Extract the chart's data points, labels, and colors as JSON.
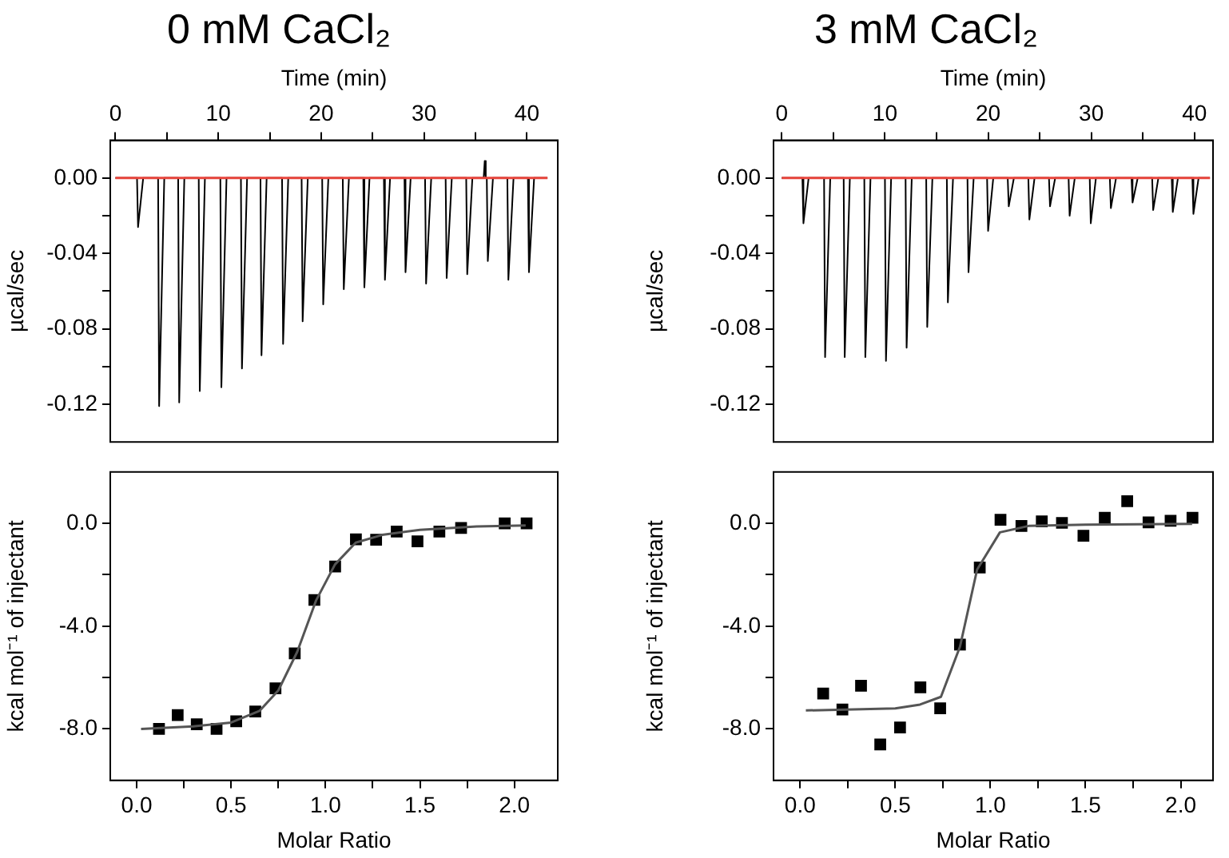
{
  "chart_data": [
    {
      "type": "line",
      "title": "0 mM CaCl₂",
      "xlabel": "Time (min)",
      "ylabel": "µcal/sec",
      "xlim": [
        -0.5,
        43
      ],
      "xticks": [
        0,
        {
          "value": 5,
          "label": null
        },
        10,
        {
          "value": 15,
          "label": null
        },
        20,
        {
          "value": 25,
          "label": null
        },
        30,
        {
          "value": 35,
          "label": null
        },
        40
      ],
      "ylim": [
        -0.14,
        0.02
      ],
      "yticks": [
        {
          "value": -0.12,
          "label": "-0.12"
        },
        {
          "value": -0.1,
          "label": null
        },
        {
          "value": -0.08,
          "label": "-0.08"
        },
        {
          "value": -0.06,
          "label": null
        },
        {
          "value": -0.04,
          "label": "-0.04"
        },
        {
          "value": -0.02,
          "label": null
        },
        {
          "value": 0,
          "label": "0.00"
        }
      ],
      "series": [
        {
          "color": "#000000",
          "marker": "none",
          "x": [
            0,
            2.1,
            2.2,
            2.7,
            4.15,
            4.25,
            4.75,
            6.1,
            6.2,
            6.7,
            8.1,
            8.2,
            8.7,
            10.2,
            10.3,
            10.8,
            12.2,
            12.3,
            12.8,
            14.1,
            14.2,
            14.7,
            16.2,
            16.3,
            16.8,
            18.1,
            18.2,
            18.7,
            20.1,
            20.2,
            20.7,
            22.1,
            22.2,
            22.7,
            24.1,
            24.2,
            24.7,
            26.1,
            26.2,
            26.7,
            28.1,
            28.2,
            28.7,
            30.1,
            30.2,
            30.7,
            32.1,
            32.2,
            32.7,
            34.1,
            34.2,
            34.7,
            35.8,
            35.9,
            36.0,
            36.1,
            36.2,
            36.7,
            38.1,
            38.2,
            38.7,
            40.1,
            40.2,
            40.7,
            42
          ],
          "values": [
            0,
            0,
            -0.026,
            0,
            0,
            -0.121,
            0,
            0,
            -0.119,
            0,
            0,
            -0.113,
            0,
            0,
            -0.111,
            0,
            0,
            -0.101,
            0,
            0,
            -0.094,
            0,
            0,
            -0.088,
            0,
            0,
            -0.076,
            0,
            0,
            -0.067,
            0,
            0,
            -0.059,
            0,
            0,
            -0.058,
            0,
            0,
            -0.054,
            0,
            0,
            -0.05,
            0,
            0,
            -0.056,
            0,
            0,
            -0.053,
            0,
            0,
            -0.051,
            0,
            0,
            0.009,
            0,
            0,
            -0.044,
            0,
            0,
            -0.054,
            0,
            0,
            -0.05,
            0,
            0
          ]
        },
        {
          "color": "#e8453c",
          "marker": "none",
          "x": [
            0,
            42
          ],
          "values": [
            0,
            0
          ]
        }
      ]
    },
    {
      "type": "line",
      "title": "3 mM CaCl₂",
      "xlabel": "Time (min)",
      "ylabel": "µcal/sec",
      "xlim": [
        -0.8,
        41.8
      ],
      "xticks": [
        0,
        {
          "value": 5,
          "label": null
        },
        10,
        {
          "value": 15,
          "label": null
        },
        20,
        {
          "value": 25,
          "label": null
        },
        30,
        {
          "value": 35,
          "label": null
        },
        40
      ],
      "ylim": [
        -0.14,
        0.02
      ],
      "yticks": [
        {
          "value": -0.12,
          "label": "-0.12"
        },
        {
          "value": -0.1,
          "label": null
        },
        {
          "value": -0.08,
          "label": "-0.08"
        },
        {
          "value": -0.06,
          "label": null
        },
        {
          "value": -0.04,
          "label": "-0.04"
        },
        {
          "value": -0.02,
          "label": null
        },
        {
          "value": 0,
          "label": "0.00"
        }
      ],
      "series": [
        {
          "color": "#000000",
          "marker": "none",
          "x": [
            0,
            2.0,
            2.1,
            2.6,
            4.1,
            4.2,
            4.7,
            6.0,
            6.1,
            6.6,
            8.0,
            8.1,
            8.6,
            10.0,
            10.1,
            10.6,
            12.0,
            12.1,
            12.6,
            14.0,
            14.1,
            14.6,
            16.0,
            16.1,
            16.6,
            18.0,
            18.1,
            18.6,
            19.9,
            20.0,
            20.5,
            21.9,
            22.0,
            22.5,
            23.9,
            24.0,
            24.5,
            25.9,
            26.0,
            26.5,
            27.8,
            27.9,
            28.4,
            29.85,
            29.95,
            30.45,
            31.8,
            31.9,
            32.4,
            33.9,
            34.0,
            34.5,
            35.9,
            36.0,
            36.5,
            37.8,
            37.9,
            38.4,
            39.8,
            39.9,
            40.4,
            41.5
          ],
          "values": [
            0,
            0,
            -0.024,
            0,
            0,
            -0.095,
            0,
            0,
            -0.095,
            0,
            0,
            -0.095,
            0,
            0,
            -0.097,
            0,
            0,
            -0.09,
            0,
            0,
            -0.079,
            0,
            0,
            -0.066,
            0,
            0,
            -0.05,
            0,
            0,
            -0.028,
            0,
            0,
            -0.015,
            0,
            0,
            -0.022,
            0,
            0,
            -0.015,
            0,
            0,
            -0.02,
            0,
            0,
            -0.024,
            0,
            0,
            -0.016,
            0,
            0,
            -0.013,
            0,
            0,
            -0.017,
            0,
            0,
            -0.018,
            0,
            0,
            -0.019,
            0,
            0
          ]
        },
        {
          "color": "#e8453c",
          "marker": "none",
          "x": [
            0,
            41.5
          ],
          "values": [
            0,
            0
          ]
        }
      ]
    },
    {
      "type": "scatter",
      "xlabel": "Molar Ratio",
      "ylabel": "kcal mol⁻¹ of injectant",
      "xlim": [
        -0.14,
        2.23
      ],
      "xticks": [
        {
          "value": 0,
          "label": "0.0"
        },
        {
          "value": 0.25,
          "label": null
        },
        0.5,
        {
          "value": 0.75,
          "label": null
        },
        {
          "value": 1,
          "label": "1.0"
        },
        {
          "value": 1.25,
          "label": null
        },
        1.5,
        {
          "value": 1.75,
          "label": null
        },
        {
          "value": 2,
          "label": "2.0"
        }
      ],
      "ylim": [
        -10,
        2
      ],
      "yticks": [
        {
          "value": -8,
          "label": "-8.0"
        },
        {
          "value": -6,
          "label": null
        },
        {
          "value": -4,
          "label": "-4.0"
        },
        {
          "value": -2,
          "label": null
        },
        {
          "value": 0,
          "label": "0.0"
        }
      ],
      "series": [
        {
          "type": "scatter",
          "color": "#000000",
          "marker": "square",
          "x": [
            0.118,
            0.217,
            0.318,
            0.423,
            0.527,
            0.628,
            0.735,
            0.837,
            0.941,
            1.051,
            1.161,
            1.268,
            1.377,
            1.487,
            1.603,
            1.718,
            1.949,
            2.065
          ],
          "values": [
            -8.0,
            -7.46,
            -7.82,
            -8.0,
            -7.7,
            -7.32,
            -6.42,
            -5.06,
            -2.98,
            -1.68,
            -0.62,
            -0.64,
            -0.32,
            -0.7,
            -0.32,
            -0.18,
            0.0,
            0.0
          ]
        },
        {
          "type": "line",
          "color": "#555555",
          "marker": "none",
          "x": [
            0.023,
            0.3,
            0.5,
            0.65,
            0.75,
            0.85,
            0.95,
            1.05,
            1.16,
            1.3,
            1.5,
            1.8,
            2.06
          ],
          "values": [
            -8.0,
            -7.9,
            -7.75,
            -7.3,
            -6.5,
            -5.0,
            -3.0,
            -1.6,
            -0.75,
            -0.45,
            -0.25,
            -0.12,
            -0.08
          ]
        }
      ]
    },
    {
      "type": "scatter",
      "xlabel": "Molar Ratio",
      "ylabel": "kcal mol⁻¹ of injectant",
      "xlim": [
        -0.14,
        2.17
      ],
      "xticks": [
        {
          "value": 0,
          "label": "0.0"
        },
        {
          "value": 0.25,
          "label": null
        },
        0.5,
        {
          "value": 0.75,
          "label": null
        },
        {
          "value": 1,
          "label": "1.0"
        },
        {
          "value": 1.25,
          "label": null
        },
        1.5,
        {
          "value": 1.75,
          "label": null
        },
        {
          "value": 2,
          "label": "2.0"
        }
      ],
      "ylim": [
        -10,
        2
      ],
      "yticks": [
        {
          "value": -8,
          "label": "-8.0"
        },
        {
          "value": -6,
          "label": null
        },
        {
          "value": -4,
          "label": "-4.0"
        },
        {
          "value": -2,
          "label": null
        },
        {
          "value": 0,
          "label": "0.0"
        }
      ],
      "series": [
        {
          "type": "scatter",
          "color": "#000000",
          "marker": "square",
          "x": [
            0.121,
            0.222,
            0.32,
            0.421,
            0.525,
            0.632,
            0.736,
            0.84,
            0.944,
            1.053,
            1.163,
            1.27,
            1.376,
            1.489,
            1.601,
            1.719,
            1.831,
            1.947,
            2.062
          ],
          "values": [
            -6.62,
            -7.24,
            -6.32,
            -8.6,
            -7.94,
            -6.38,
            -7.2,
            -4.72,
            -1.72,
            0.14,
            -0.1,
            0.08,
            0.02,
            -0.48,
            0.22,
            0.86,
            0.04,
            0.1,
            0.22
          ]
        },
        {
          "type": "line",
          "color": "#555555",
          "marker": "none",
          "x": [
            0.03,
            0.5,
            0.63,
            0.74,
            0.84,
            0.93,
            1.05,
            1.2,
            1.5,
            2.06
          ],
          "values": [
            -7.28,
            -7.2,
            -7.05,
            -6.75,
            -4.8,
            -1.8,
            -0.35,
            -0.1,
            -0.05,
            -0.02
          ]
        }
      ]
    }
  ]
}
